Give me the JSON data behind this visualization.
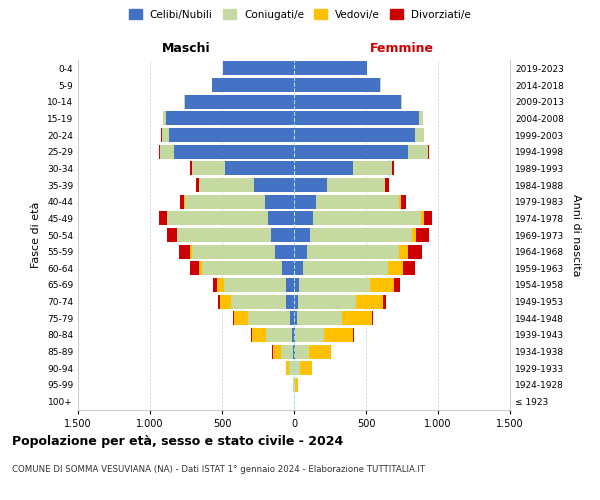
{
  "age_groups": [
    "100+",
    "95-99",
    "90-94",
    "85-89",
    "80-84",
    "75-79",
    "70-74",
    "65-69",
    "60-64",
    "55-59",
    "50-54",
    "45-49",
    "40-44",
    "35-39",
    "30-34",
    "25-29",
    "20-24",
    "15-19",
    "10-14",
    "5-9",
    "0-4"
  ],
  "birth_years": [
    "≤ 1923",
    "1924-1928",
    "1929-1933",
    "1934-1938",
    "1939-1943",
    "1944-1948",
    "1949-1953",
    "1954-1958",
    "1959-1963",
    "1964-1968",
    "1969-1973",
    "1974-1978",
    "1979-1983",
    "1984-1988",
    "1989-1993",
    "1994-1998",
    "1999-2003",
    "2004-2008",
    "2009-2013",
    "2014-2018",
    "2019-2023"
  ],
  "male": {
    "celibi": [
      0,
      0,
      2,
      8,
      15,
      30,
      55,
      55,
      80,
      130,
      160,
      180,
      200,
      280,
      480,
      830,
      870,
      890,
      760,
      570,
      490
    ],
    "coniugati": [
      0,
      5,
      30,
      80,
      180,
      290,
      380,
      430,
      560,
      580,
      650,
      700,
      560,
      380,
      230,
      100,
      50,
      20,
      5,
      2,
      0
    ],
    "vedovi": [
      0,
      5,
      25,
      60,
      100,
      100,
      80,
      50,
      20,
      10,
      5,
      5,
      3,
      2,
      1,
      0,
      0,
      0,
      0,
      0,
      0
    ],
    "divorziati": [
      0,
      0,
      0,
      2,
      5,
      5,
      15,
      30,
      60,
      80,
      70,
      50,
      30,
      20,
      10,
      5,
      2,
      1,
      0,
      0,
      0
    ]
  },
  "female": {
    "nubili": [
      0,
      0,
      2,
      5,
      10,
      20,
      30,
      35,
      60,
      90,
      110,
      130,
      150,
      230,
      410,
      790,
      840,
      870,
      740,
      600,
      510
    ],
    "coniugate": [
      0,
      5,
      40,
      100,
      200,
      310,
      400,
      490,
      590,
      640,
      710,
      750,
      580,
      400,
      270,
      140,
      60,
      25,
      8,
      2,
      0
    ],
    "vedove": [
      2,
      20,
      80,
      150,
      200,
      210,
      190,
      170,
      110,
      60,
      30,
      20,
      10,
      5,
      2,
      1,
      0,
      0,
      0,
      0,
      0
    ],
    "divorziate": [
      0,
      0,
      1,
      3,
      8,
      10,
      20,
      40,
      80,
      100,
      90,
      60,
      35,
      25,
      15,
      5,
      2,
      1,
      0,
      0,
      0
    ]
  },
  "colors": {
    "celibi": "#4472c4",
    "coniugati": "#c5d9a0",
    "vedovi": "#ffc000",
    "divorziati": "#cc0000"
  },
  "xlim": 1500,
  "title": "Popolazione per età, sesso e stato civile - 2024",
  "subtitle": "COMUNE DI SOMMA VESUVIANA (NA) - Dati ISTAT 1° gennaio 2024 - Elaborazione TUTTITALIA.IT",
  "xlabel_left": "Maschi",
  "xlabel_right": "Femmine",
  "ylabel": "Fasce di età",
  "ylabel_right": "Anni di nascita",
  "legend_labels": [
    "Celibi/Nubili",
    "Coniugati/e",
    "Vedovi/e",
    "Divorziati/e"
  ]
}
